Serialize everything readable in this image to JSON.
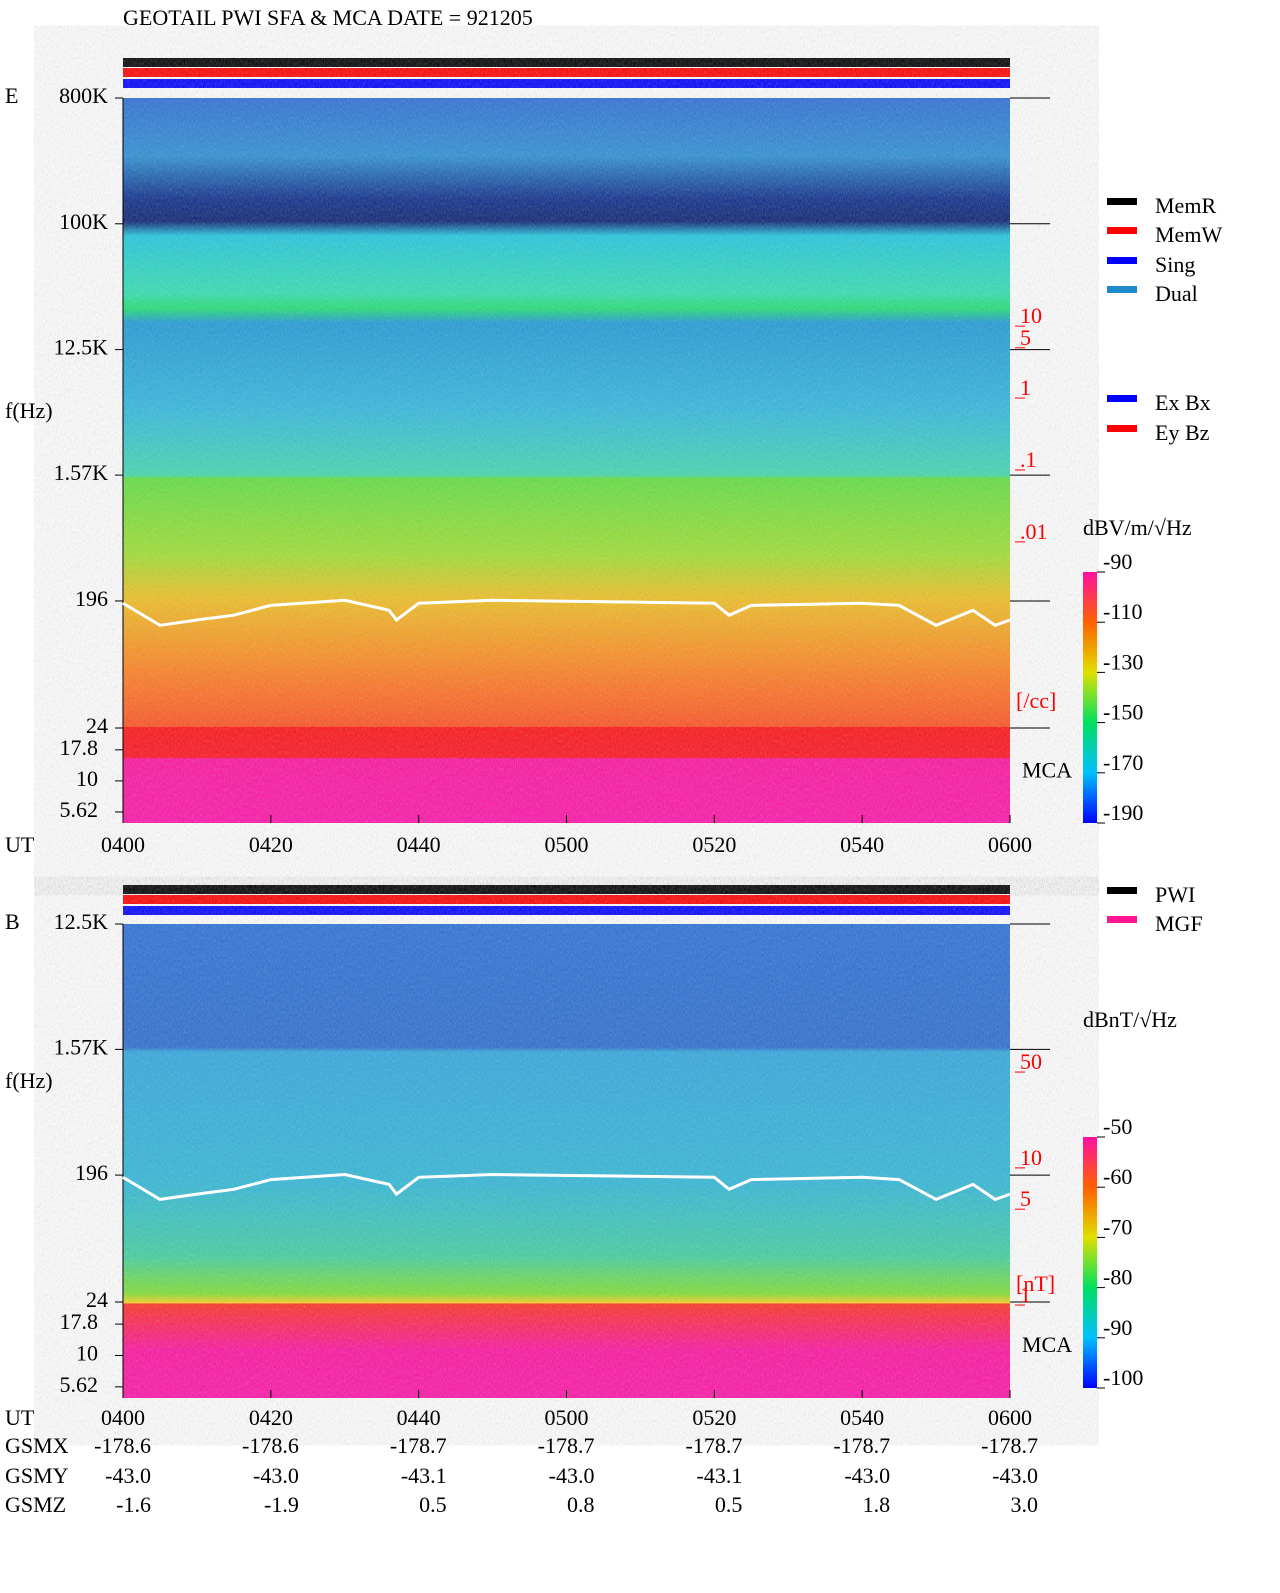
{
  "title": "GEOTAIL  PWI SFA & MCA   DATE = 921205",
  "chart_data": [
    {
      "type": "spectrogram",
      "panel_label": "E",
      "y_label": "f(Hz)",
      "x_label": "UT",
      "mca_label": "MCA",
      "xlim": [
        0,
        120
      ],
      "xticks": [
        {
          "value": 0,
          "label": "0400"
        },
        {
          "value": 20,
          "label": "0420"
        },
        {
          "value": 40,
          "label": "0440"
        },
        {
          "value": 60,
          "label": "0500"
        },
        {
          "value": 80,
          "label": "0520"
        },
        {
          "value": 100,
          "label": "0540"
        },
        {
          "value": 120,
          "label": "0600"
        }
      ],
      "log_scale": true,
      "ylim": [
        24,
        800000
      ],
      "yticks": [
        {
          "value": 800000,
          "label": "800K"
        },
        {
          "value": 100000,
          "label": "100K"
        },
        {
          "value": 12500,
          "label": "12.5K"
        },
        {
          "value": 1570,
          "label": "1.57K"
        },
        196,
        24
      ],
      "mca_ylim": [
        4.58,
        26.7
      ],
      "mca_yticks": [
        17.8,
        10,
        5.62
      ],
      "y2_label": "[/cc]",
      "y2lim": [
        2e-05,
        11500
      ],
      "y2ticks": [
        10,
        5,
        1,
        {
          "value": 0.1,
          "label": ".1"
        },
        {
          "value": 0.01,
          "label": ".01"
        }
      ],
      "line": {
        "color": "#ffffff",
        "x": [
          0,
          5,
          10,
          15,
          20,
          30,
          36,
          37,
          40,
          50,
          80,
          82,
          85,
          100,
          105,
          110,
          115,
          118,
          120
        ],
        "values": [
          189,
          131,
          143,
          155,
          182,
          198,
          168,
          143,
          189,
          198,
          189,
          155,
          182,
          189,
          182,
          131,
          168,
          131,
          143
        ]
      },
      "colorbar": {
        "label": "dBV/m/√Hz",
        "lim": [
          -190,
          -90
        ],
        "ticks": [
          -90,
          -110,
          -130,
          -150,
          -170,
          -190
        ]
      },
      "legend": [
        {
          "name": "MemR",
          "color": "#000000"
        },
        {
          "name": "MemW",
          "color": "#ff0000"
        },
        {
          "name": "Sing",
          "color": "#0000ff"
        },
        {
          "name": "Dual",
          "color": "#1e8ccc"
        }
      ],
      "legend2": [
        {
          "name": "Ex Bx",
          "color": "#0000ff"
        },
        {
          "name": "Ey Bz",
          "color": "#ff0000"
        }
      ]
    },
    {
      "type": "spectrogram",
      "panel_label": "B",
      "y_label": "f(Hz)",
      "x_label": "UT",
      "mca_label": "MCA",
      "xlim": [
        0,
        120
      ],
      "xticks": [
        {
          "value": 0,
          "label": "0400"
        },
        {
          "value": 20,
          "label": "0420"
        },
        {
          "value": 40,
          "label": "0440"
        },
        {
          "value": 60,
          "label": "0500"
        },
        {
          "value": 80,
          "label": "0520"
        },
        {
          "value": 100,
          "label": "0540"
        },
        {
          "value": 120,
          "label": "0600"
        }
      ],
      "log_scale": true,
      "ylim": [
        24,
        12500
      ],
      "yticks": [
        {
          "value": 12500,
          "label": "12.5K"
        },
        {
          "value": 1570,
          "label": "1.57K"
        },
        196,
        24
      ],
      "mca_ylim": [
        4.58,
        26.7
      ],
      "mca_yticks": [
        17.8,
        10,
        5.62
      ],
      "y2_label": "[nT]",
      "y2lim": [
        0.92,
        525
      ],
      "y2ticks": [
        50,
        10,
        5,
        1
      ],
      "line": {
        "color": "#ffffff",
        "x": [
          0,
          5,
          10,
          15,
          20,
          30,
          36,
          37,
          40,
          50,
          80,
          82,
          85,
          100,
          105,
          110,
          115,
          118,
          120
        ],
        "values": [
          189,
          131,
          143,
          155,
          182,
          198,
          168,
          143,
          189,
          198,
          189,
          155,
          182,
          189,
          182,
          131,
          168,
          131,
          143
        ]
      },
      "colorbar": {
        "label": "dBnT/√Hz",
        "lim": [
          -100,
          -50
        ],
        "ticks": [
          -50,
          -60,
          -70,
          -80,
          -90,
          -100
        ]
      },
      "legend": [
        {
          "name": "PWI",
          "color": "#000000"
        },
        {
          "name": "MGF",
          "color": "#ff1493"
        }
      ],
      "orbit": [
        {
          "name": "GSMX",
          "values": [
            "-178.6",
            "-178.6",
            "-178.7",
            "-178.7",
            "-178.7",
            "-178.7",
            "-178.7"
          ]
        },
        {
          "name": "GSMY",
          "values": [
            "-43.0",
            "-43.0",
            "-43.1",
            "-43.0",
            "-43.1",
            "-43.0",
            "-43.0"
          ]
        },
        {
          "name": "GSMZ",
          "values": [
            "-1.6",
            "-1.9",
            "0.5",
            "0.8",
            "0.5",
            "1.8",
            "3.0"
          ]
        }
      ]
    }
  ]
}
